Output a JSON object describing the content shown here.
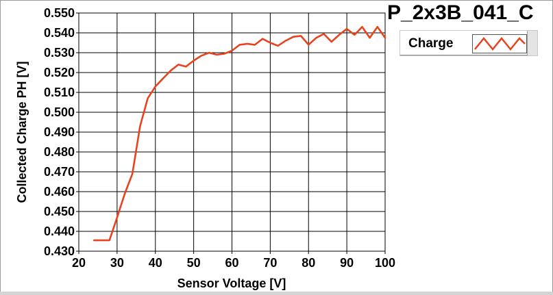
{
  "window": {
    "title": "P_2x3B_041_C"
  },
  "legend": {
    "label": "Charge",
    "icon": "zigzag-line-icon",
    "color": "#e8421e"
  },
  "chart_data": {
    "type": "line",
    "title": "P_2x3B_041_C",
    "xlabel": "Sensor Voltage [V]",
    "ylabel": "Collected Charge PH [V]",
    "xlim": [
      20,
      100
    ],
    "ylim": [
      0.43,
      0.55
    ],
    "grid": true,
    "legend_placement": "top-right",
    "x_ticks": [
      "20",
      "30",
      "40",
      "50",
      "60",
      "70",
      "80",
      "90",
      "100"
    ],
    "y_ticks": [
      "0.430",
      "0.440",
      "0.450",
      "0.460",
      "0.470",
      "0.480",
      "0.490",
      "0.500",
      "0.510",
      "0.520",
      "0.530",
      "0.540",
      "0.550"
    ],
    "series": [
      {
        "name": "Charge",
        "color": "#e8421e",
        "x": [
          24,
          26,
          28,
          30,
          32,
          34,
          36,
          38,
          40,
          42,
          44,
          46,
          48,
          50,
          52,
          54,
          56,
          58,
          60,
          62,
          64,
          66,
          68,
          70,
          72,
          74,
          76,
          78,
          80,
          82,
          84,
          86,
          88,
          90,
          92,
          94,
          96,
          98,
          100
        ],
        "y": [
          0.4355,
          0.4355,
          0.4355,
          0.447,
          0.459,
          0.469,
          0.493,
          0.507,
          0.513,
          0.517,
          0.521,
          0.524,
          0.523,
          0.526,
          0.5285,
          0.53,
          0.529,
          0.5295,
          0.531,
          0.534,
          0.5345,
          0.534,
          0.537,
          0.535,
          0.5335,
          0.536,
          0.538,
          0.5385,
          0.534,
          0.5375,
          0.5395,
          0.5355,
          0.539,
          0.542,
          0.539,
          0.543,
          0.5375,
          0.543,
          0.5375
        ]
      }
    ]
  }
}
